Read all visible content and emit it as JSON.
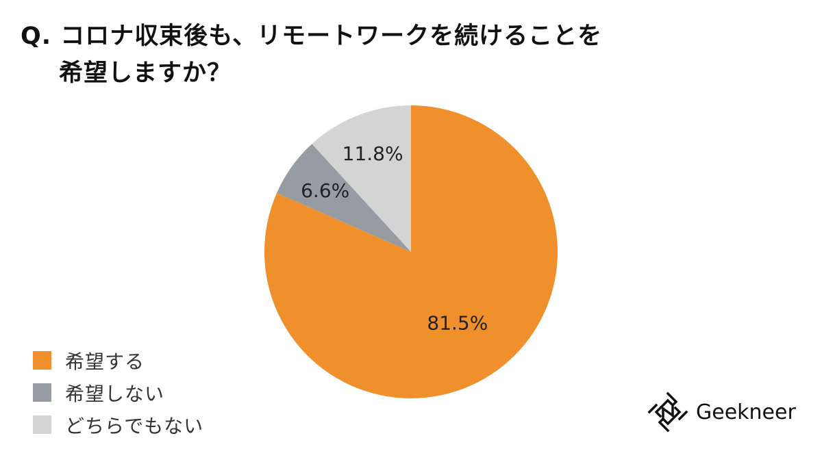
{
  "title": {
    "line1": "Q. コロナ収束後も、リモートワークを続けることを",
    "line2": "希望しますか？"
  },
  "chart_data": {
    "type": "pie",
    "categories": [
      "希望する",
      "希望しない",
      "どちらでもない"
    ],
    "values": [
      81.5,
      6.6,
      11.8
    ],
    "labels": [
      "81.5%",
      "6.6%",
      "11.8%"
    ],
    "colors": [
      "#f0902d",
      "#979ca2",
      "#d4d4d4"
    ],
    "start_angle_deg": 0,
    "direction": "clockwise",
    "legend_position": "bottom-left"
  },
  "legend": [
    {
      "label": "希望する",
      "color": "#f0902d"
    },
    {
      "label": "希望しない",
      "color": "#979ca2"
    },
    {
      "label": "どちらでもない",
      "color": "#d4d4d4"
    }
  ],
  "logo": {
    "text": "Geekneer",
    "icon": "geekneer-logo-icon"
  }
}
